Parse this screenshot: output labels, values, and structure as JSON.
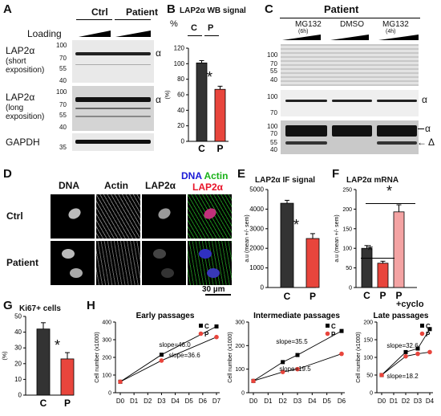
{
  "panels": {
    "A": {
      "letter": "A",
      "groups": [
        "Ctrl",
        "Patient"
      ],
      "loading_label": "Loading",
      "rows": [
        {
          "name": "LAP2α",
          "sub": "(short",
          "sub2": "exposition)",
          "mw": [
            "100",
            "70",
            "55",
            "40"
          ],
          "band": "α"
        },
        {
          "name": "LAP2α",
          "sub": "(long",
          "sub2": "exposition)",
          "mw": [
            "100",
            "70",
            "55",
            "40"
          ],
          "band": "α"
        },
        {
          "name": "GAPDH",
          "sub": "",
          "sub2": "",
          "mw": [
            "35"
          ],
          "band": ""
        }
      ]
    },
    "B": {
      "letter": "B",
      "title": "LAP2α WB signal",
      "unit": "%",
      "ylabel": "(%)",
      "legend": [
        "C",
        "P"
      ],
      "star": "*"
    },
    "C": {
      "letter": "C",
      "title": "Patient",
      "treatments": [
        "MG132",
        "DMSO",
        "MG132"
      ],
      "treatment_times": [
        "(6h)",
        "",
        "(4h)"
      ],
      "mw_top": [
        "100",
        "70",
        "55",
        "40"
      ],
      "mw_mid": [
        "100",
        "70"
      ],
      "mw_bot": [
        "100",
        "70",
        "55",
        "40"
      ],
      "band_mid": "α",
      "band_bot_a": "α",
      "band_bot_d": "Δ"
    },
    "D": {
      "letter": "D",
      "col_headers": [
        "DNA",
        "Actin",
        "LAP2α"
      ],
      "merge_header": {
        "dna": "DNA",
        "actin": "Actin",
        "lap": "LAP2α"
      },
      "row_labels": [
        "Ctrl",
        "Patient"
      ],
      "scale_bar": "30 µm"
    },
    "E": {
      "letter": "E",
      "title": "LAP2α IF signal",
      "ylabel": "a.u (mean +/- sem)",
      "star": "*"
    },
    "F": {
      "letter": "F",
      "title": "LAP2α mRNA",
      "ylabel": "a.u (mean +/- sem)",
      "stars": [
        "*",
        "*"
      ],
      "extra_label": "+cyclo"
    },
    "G": {
      "letter": "G",
      "title": "Ki67+ cells",
      "ylabel": "(%)",
      "star": "*"
    },
    "H": {
      "letter": "H",
      "ylabel": "Cell number (x1000)"
    }
  },
  "chart_data": [
    {
      "id": "B",
      "type": "bar",
      "categories": [
        "C",
        "P"
      ],
      "values": [
        101,
        67
      ],
      "errors": [
        3,
        4
      ],
      "ylim": [
        0,
        120
      ],
      "yticks": [
        "0",
        "20",
        "40",
        "60",
        "80",
        "100",
        "120"
      ],
      "colors": [
        "#333333",
        "#e8453c"
      ],
      "ylabel": "(%)"
    },
    {
      "id": "E",
      "type": "bar",
      "categories": [
        "C",
        "P"
      ],
      "values": [
        4300,
        2500
      ],
      "errors": [
        150,
        250
      ],
      "ylim": [
        0,
        5000
      ],
      "yticks": [
        "0",
        "1000",
        "2000",
        "3000",
        "4000",
        "5000"
      ],
      "colors": [
        "#333333",
        "#e8453c"
      ],
      "ylabel": "a.u (mean +/- sem)"
    },
    {
      "id": "F",
      "type": "bar",
      "categories": [
        "C",
        "P",
        "P"
      ],
      "values": [
        100,
        62,
        193
      ],
      "errors": [
        7,
        5,
        18
      ],
      "ylim": [
        0,
        250
      ],
      "yticks": [
        "0",
        "50",
        "100",
        "150",
        "200",
        "250"
      ],
      "colors": [
        "#333333",
        "#e8453c",
        "#f4a3a3"
      ],
      "ylabel": "a.u (mean +/- sem)"
    },
    {
      "id": "G",
      "type": "bar",
      "categories": [
        "C",
        "P"
      ],
      "values": [
        42,
        23
      ],
      "errors": [
        4,
        4
      ],
      "ylim": [
        0,
        50
      ],
      "yticks": [
        "0",
        "10",
        "20",
        "30",
        "40",
        "50"
      ],
      "colors": [
        "#333333",
        "#e8453c"
      ],
      "ylabel": "(%)"
    },
    {
      "id": "H1",
      "type": "line",
      "title": "Early passages",
      "x": [
        "D0",
        "D1",
        "D2",
        "D3",
        "D4",
        "D5",
        "D6",
        "D7"
      ],
      "ylim": [
        0,
        400
      ],
      "yticks": [
        "0",
        "100",
        "200",
        "300",
        "400"
      ],
      "ylabel": "Cell number (x1000)",
      "series": [
        {
          "name": "C",
          "color": "#000000",
          "points": [
            [
              0,
              62
            ],
            [
              3,
              215
            ],
            [
              7,
              375
            ]
          ]
        },
        {
          "name": "P",
          "color": "#e8453c",
          "points": [
            [
              0,
              62
            ],
            [
              3,
              182
            ],
            [
              7,
              315
            ]
          ]
        }
      ],
      "annotations": [
        "slope=46.0",
        "slope=36.6"
      ]
    },
    {
      "id": "H2",
      "type": "line",
      "title": "Intermediate passages",
      "x": [
        "D0",
        "D1",
        "D2",
        "D3",
        "D4",
        "D5",
        "D6"
      ],
      "ylim": [
        0,
        300
      ],
      "yticks": [
        "0",
        "100",
        "200",
        "300"
      ],
      "ylabel": "Cell number (x1000)",
      "series": [
        {
          "name": "C",
          "color": "#000000",
          "points": [
            [
              0,
              50
            ],
            [
              2,
              130
            ],
            [
              3,
              160
            ],
            [
              6,
              262
            ]
          ]
        },
        {
          "name": "P",
          "color": "#e8453c",
          "points": [
            [
              0,
              50
            ],
            [
              2,
              88
            ],
            [
              3,
              100
            ],
            [
              6,
              165
            ]
          ]
        }
      ],
      "annotations": [
        "slope=35.5",
        "slope=19.5"
      ]
    },
    {
      "id": "H3",
      "type": "line",
      "title": "Late passages",
      "x": [
        "D0",
        "D1",
        "D2",
        "D3",
        "D4"
      ],
      "ylim": [
        0,
        200
      ],
      "yticks": [
        "0",
        "50",
        "100",
        "150",
        "200"
      ],
      "ylabel": "Cell number (x1000)",
      "series": [
        {
          "name": "C",
          "color": "#000000",
          "points": [
            [
              0,
              50
            ],
            [
              2,
              115
            ],
            [
              3,
              125
            ],
            [
              4,
              180
            ]
          ]
        },
        {
          "name": "P",
          "color": "#e8453c",
          "points": [
            [
              0,
              50
            ],
            [
              2,
              103
            ],
            [
              3,
              110
            ],
            [
              4,
              115
            ]
          ]
        }
      ],
      "annotations": [
        "slope=32.6",
        "slope=18.2"
      ]
    }
  ]
}
